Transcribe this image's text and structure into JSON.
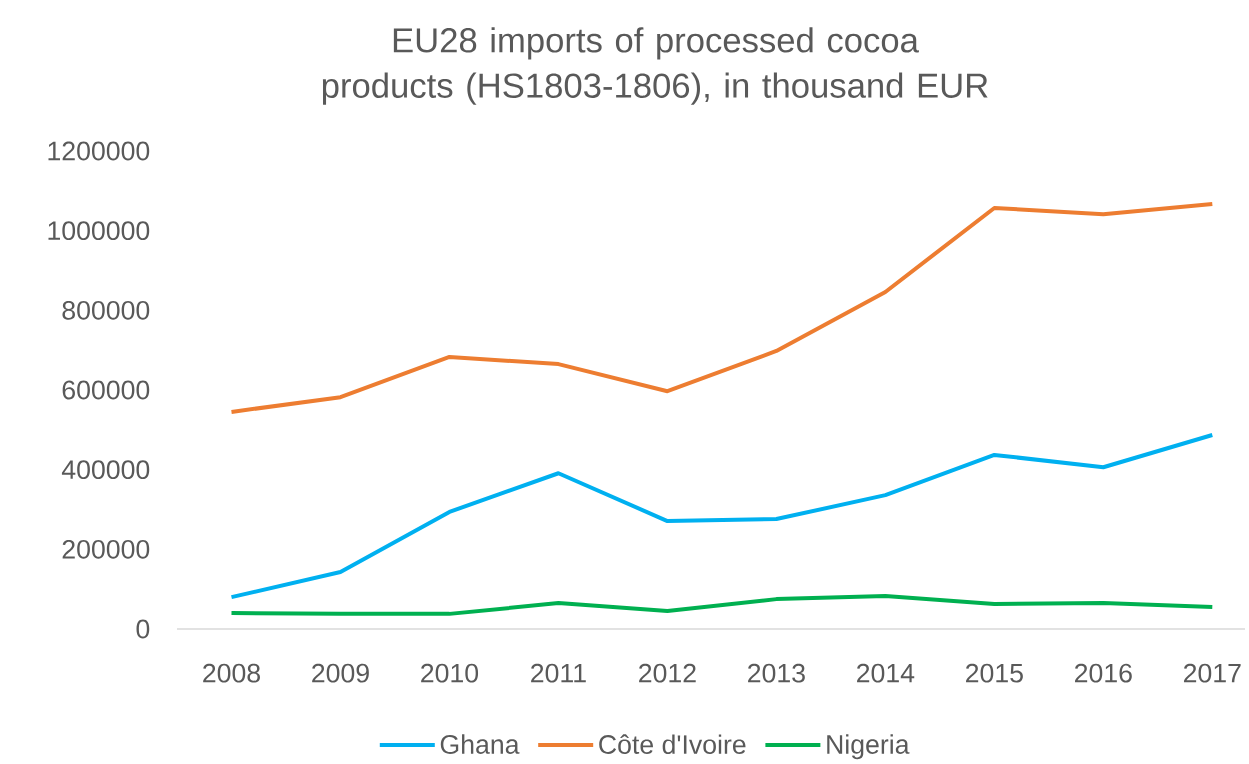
{
  "chart_data": {
    "type": "line",
    "title": "EU28 imports of processed cocoa products (HS1803-1806), in thousand EUR",
    "categories": [
      "2008",
      "2009",
      "2010",
      "2011",
      "2012",
      "2013",
      "2014",
      "2015",
      "2016",
      "2017"
    ],
    "series": [
      {
        "name": "Ghana",
        "color": "#00b0f0",
        "values": [
          80000,
          143000,
          294000,
          391000,
          271000,
          276000,
          336000,
          437000,
          406000,
          487000
        ]
      },
      {
        "name": "Côte d'Ivoire",
        "color": "#ed7d31",
        "values": [
          545000,
          582000,
          683000,
          665000,
          597000,
          698000,
          846000,
          1057000,
          1041000,
          1067000
        ]
      },
      {
        "name": "Nigeria",
        "color": "#00b050",
        "values": [
          40000,
          38000,
          38000,
          65000,
          45000,
          75000,
          83000,
          63000,
          65000,
          55000
        ]
      }
    ],
    "ylim": [
      0,
      1200000
    ],
    "yticks": [
      0,
      200000,
      400000,
      600000,
      800000,
      1000000,
      1200000
    ],
    "legend": "bottom",
    "line_style": "solid"
  }
}
